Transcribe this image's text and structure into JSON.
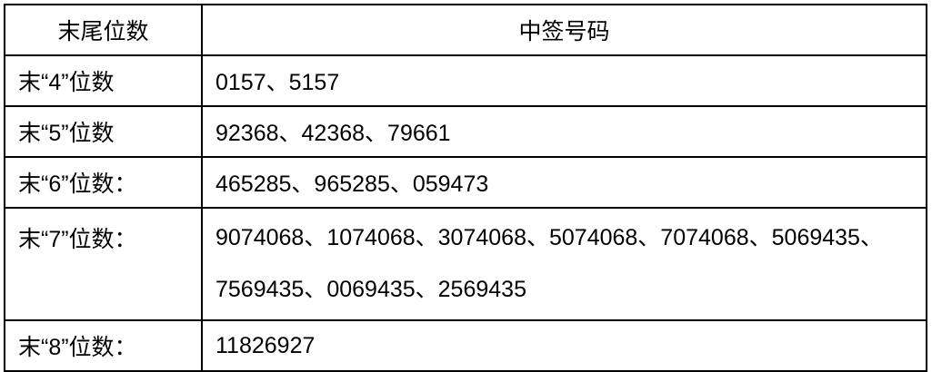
{
  "table": {
    "headers": [
      "末尾位数",
      "中签号码"
    ],
    "rows": [
      {
        "label": "末“4”位数",
        "codes": "0157、5157"
      },
      {
        "label": "末“5”位数",
        "codes": "92368、42368、79661"
      },
      {
        "label": "末“6”位数：",
        "codes": "465285、965285、059473"
      },
      {
        "label": "末“7”位数：",
        "codes": "9074068、1074068、3074068、5074068、7074068、5069435、7569435、0069435、2569435"
      },
      {
        "label": "末“8”位数：",
        "codes": "11826927"
      }
    ]
  }
}
